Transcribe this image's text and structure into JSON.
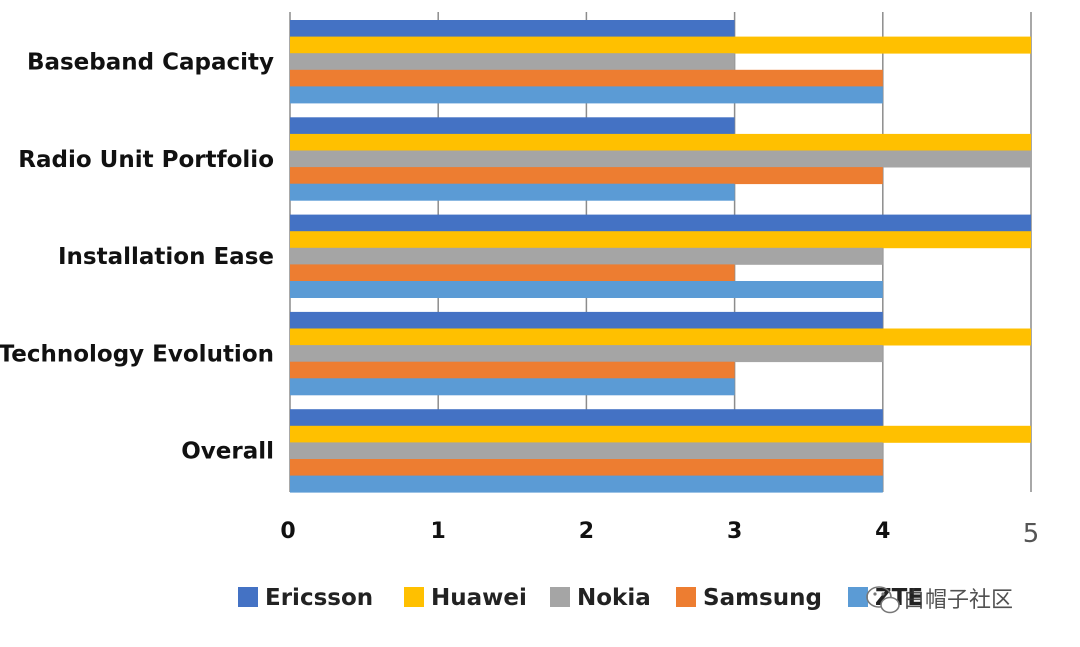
{
  "chart_data": {
    "type": "bar",
    "orientation": "horizontal",
    "categories": [
      "Baseband Capacity",
      "Radio Unit Portfolio",
      "Installation Ease",
      "Technology Evolution",
      "Overall"
    ],
    "series": [
      {
        "name": "Ericsson",
        "color": "#4472C4",
        "values": [
          3,
          3,
          5,
          4,
          4
        ]
      },
      {
        "name": "Huawei",
        "color": "#FFC000",
        "values": [
          5,
          5,
          5,
          5,
          5
        ]
      },
      {
        "name": "Nokia",
        "color": "#A5A5A5",
        "values": [
          3,
          5,
          4,
          4,
          4
        ]
      },
      {
        "name": "Samsung",
        "color": "#ED7D31",
        "values": [
          4,
          4,
          3,
          3,
          4
        ]
      },
      {
        "name": "ZTE",
        "color": "#5B9BD5",
        "values": [
          4,
          3,
          4,
          3,
          4
        ]
      }
    ],
    "x_ticks": [
      "0",
      "1",
      "2",
      "3",
      "4",
      "5"
    ],
    "xlim": [
      0,
      5
    ],
    "grid": "vertical",
    "legend_position": "bottom"
  },
  "watermark": {
    "text": "白帽子社区",
    "icon": "wechat-icon"
  }
}
